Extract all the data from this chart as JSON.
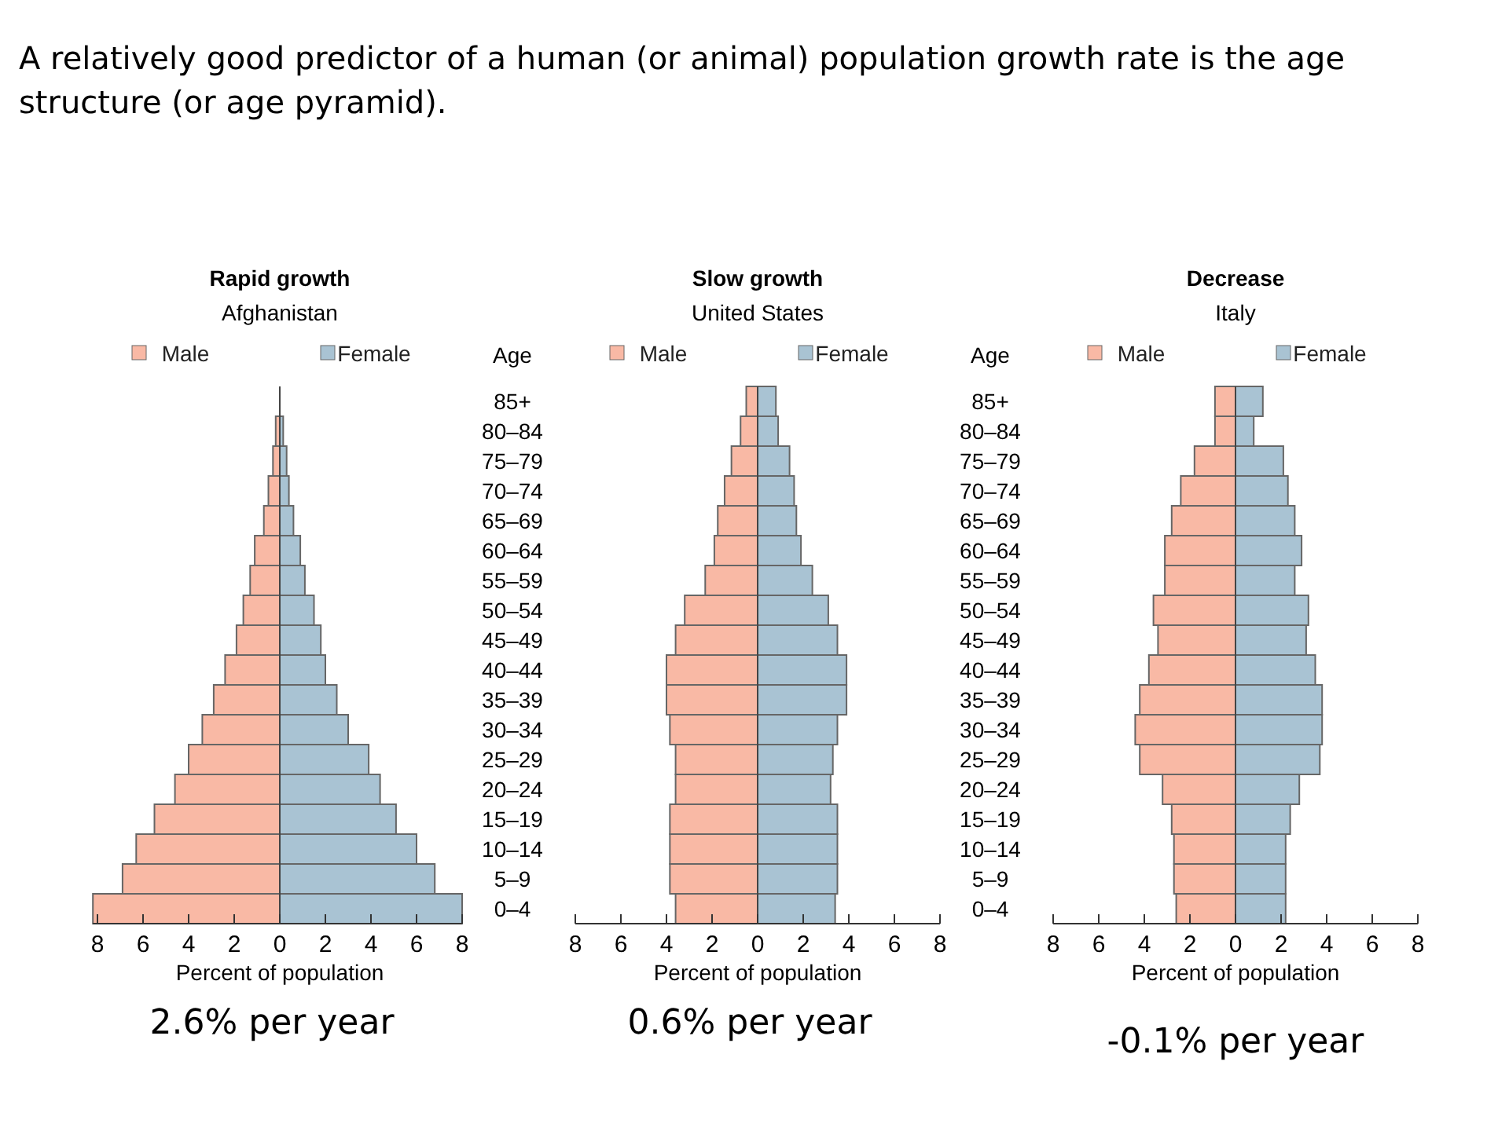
{
  "chart_data": [
    {
      "type": "bar",
      "orientation": "horizontal",
      "stacked": true,
      "title": "Rapid growth",
      "subtitle": "Afghanistan",
      "xlabel": "Percent of population",
      "legend": "top",
      "tick_labels": "x",
      "categories": [
        null,
        null,
        null,
        null,
        null,
        null,
        null,
        null,
        null,
        null,
        null,
        null,
        null,
        null,
        null,
        null,
        null,
        null
      ],
      "xlim": [
        -8.2,
        8
      ],
      "xticks": [
        {
          "value": -8,
          "label": "8"
        },
        {
          "value": -6,
          "label": "6"
        },
        {
          "value": -4,
          "label": "4"
        },
        {
          "value": -2,
          "label": "2"
        },
        0,
        2,
        4,
        6,
        8
      ],
      "series": [
        {
          "name": "Male",
          "color": "#f9b9a5",
          "values": [
            0,
            -0.18,
            -0.3,
            -0.5,
            -0.7,
            -1.1,
            -1.3,
            -1.6,
            -1.9,
            -2.4,
            -2.9,
            -3.4,
            -4.0,
            -4.6,
            -5.5,
            -6.3,
            -6.9,
            -8.2
          ]
        },
        {
          "name": "Female",
          "color": "#a9c3d3",
          "values": [
            0,
            0.15,
            0.3,
            0.4,
            0.6,
            0.9,
            1.1,
            1.5,
            1.8,
            2.0,
            2.5,
            3.0,
            3.9,
            4.4,
            5.1,
            6.0,
            6.8,
            8.0
          ]
        }
      ],
      "annotations": [
        "A relatively good predictor of a human (or animal) population growth rate is the age structure (or age pyramid).",
        "2.6% per year"
      ]
    },
    {
      "type": "bar",
      "orientation": "horizontal",
      "stacked": true,
      "title": "Slow growth",
      "subtitle": "United States",
      "xlabel": "Percent of population",
      "ylabel": "Age",
      "legend": "top",
      "categories": [
        "85+",
        "80–84",
        "75–79",
        "70–74",
        "65–69",
        "60–64",
        "55–59",
        "50–54",
        "45–49",
        "40–44",
        "35–39",
        "30–34",
        "25–29",
        "20–24",
        "15–19",
        "10–14",
        "5–9",
        "0–4"
      ],
      "xlim": [
        -8,
        8
      ],
      "xticks": [
        {
          "value": -8,
          "label": "8"
        },
        {
          "value": -6,
          "label": "6"
        },
        {
          "value": -4,
          "label": "4"
        },
        {
          "value": -2,
          "label": "2"
        },
        0,
        2,
        4,
        6,
        8
      ],
      "series": [
        {
          "name": "Male",
          "color": "#f9b9a5",
          "values": [
            -0.5,
            -0.75,
            -1.15,
            -1.45,
            -1.75,
            -1.9,
            -2.3,
            -3.2,
            -3.6,
            -4.0,
            -4.0,
            -3.85,
            -3.6,
            -3.6,
            -3.85,
            -3.85,
            -3.85,
            -3.6
          ]
        },
        {
          "name": "Female",
          "color": "#a9c3d3",
          "values": [
            0.8,
            0.9,
            1.4,
            1.6,
            1.7,
            1.9,
            2.4,
            3.1,
            3.5,
            3.9,
            3.9,
            3.5,
            3.3,
            3.2,
            3.5,
            3.5,
            3.5,
            3.4
          ]
        }
      ],
      "annotations": [
        "0.6% per year"
      ]
    },
    {
      "type": "bar",
      "orientation": "horizontal",
      "stacked": true,
      "title": "Decrease",
      "subtitle": "Italy",
      "xlabel": "Percent of population",
      "ylabel": "Age",
      "legend": "top",
      "categories": [
        "85+",
        "80–84",
        "75–79",
        "70–74",
        "65–69",
        "60–64",
        "55–59",
        "50–54",
        "45–49",
        "40–44",
        "35–39",
        "30–34",
        "25–29",
        "20–24",
        "15–19",
        "10–14",
        "5–9",
        "0–4"
      ],
      "xlim": [
        -8,
        8
      ],
      "xticks": [
        {
          "value": -8,
          "label": "8"
        },
        {
          "value": -6,
          "label": "6"
        },
        {
          "value": -4,
          "label": "4"
        },
        {
          "value": -2,
          "label": "2"
        },
        0,
        2,
        4,
        6,
        8
      ],
      "series": [
        {
          "name": "Male",
          "color": "#f9b9a5",
          "values": [
            -0.9,
            -0.9,
            -1.8,
            -2.4,
            -2.8,
            -3.1,
            -3.1,
            -3.6,
            -3.4,
            -3.8,
            -4.2,
            -4.4,
            -4.2,
            -3.2,
            -2.8,
            -2.7,
            -2.7,
            -2.6
          ]
        },
        {
          "name": "Female",
          "color": "#a9c3d3",
          "values": [
            1.2,
            0.8,
            2.1,
            2.3,
            2.6,
            2.9,
            2.6,
            3.2,
            3.1,
            3.5,
            3.8,
            3.8,
            3.7,
            2.8,
            2.4,
            2.2,
            2.2,
            2.2
          ]
        }
      ],
      "annotations": [
        "-0.1% per year"
      ]
    }
  ]
}
